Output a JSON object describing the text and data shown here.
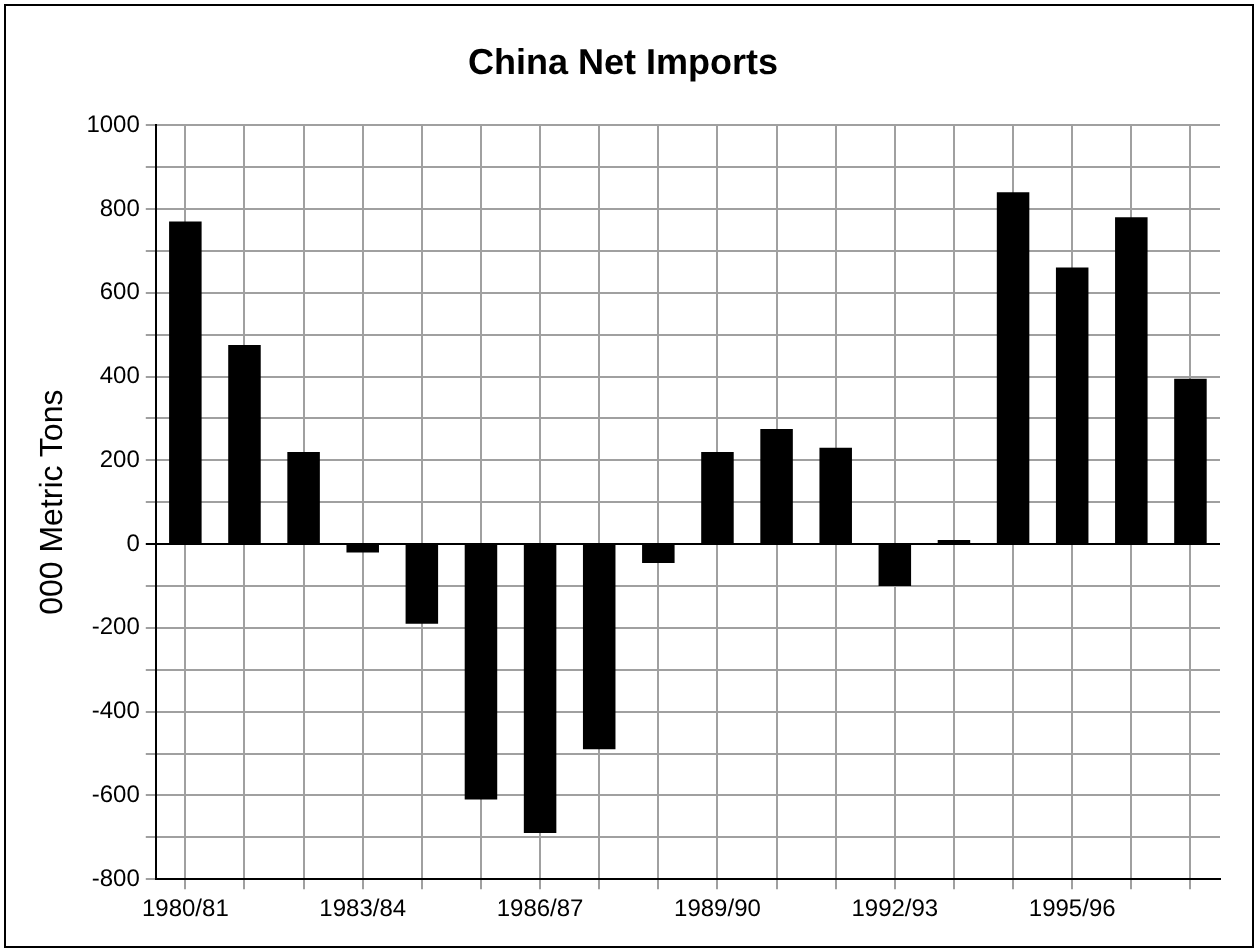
{
  "chart_data": {
    "type": "bar",
    "title": "China Net Imports",
    "ylabel": "000 Metric Tons",
    "categories": [
      "1980/81",
      null,
      null,
      "1983/84",
      null,
      null,
      "1986/87",
      null,
      null,
      "1989/90",
      null,
      null,
      "1992/93",
      null,
      null,
      "1995/96",
      null,
      null
    ],
    "values": [
      770,
      475,
      220,
      -20,
      -190,
      -610,
      -690,
      -490,
      -45,
      220,
      275,
      230,
      -100,
      10,
      840,
      660,
      780,
      395
    ],
    "color": "#000000",
    "ylim": [
      -800,
      1000
    ],
    "yticks": [
      -800,
      {
        "value": -700,
        "label": null
      },
      -600,
      {
        "value": -500,
        "label": null
      },
      -400,
      {
        "value": -300,
        "label": null
      },
      -200,
      {
        "value": -100,
        "label": null
      },
      0,
      {
        "value": 100,
        "label": null
      },
      200,
      {
        "value": 300,
        "label": null
      },
      400,
      {
        "value": 500,
        "label": null
      },
      600,
      {
        "value": 700,
        "label": null
      },
      800,
      {
        "value": 900,
        "label": null
      },
      1000
    ],
    "grid": true,
    "legend": false
  }
}
